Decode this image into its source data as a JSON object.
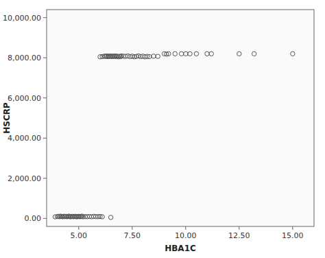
{
  "chart_data": {
    "type": "scatter",
    "xlabel": "HBA1C",
    "ylabel": "HSCRP",
    "color": "#555555",
    "marker": "circle",
    "x": [
      3.9,
      4.0,
      4.05,
      4.1,
      4.15,
      4.2,
      4.25,
      4.3,
      4.35,
      4.4,
      4.45,
      4.5,
      4.55,
      4.6,
      4.65,
      4.7,
      4.75,
      4.8,
      4.85,
      4.9,
      4.95,
      5.0,
      5.05,
      5.1,
      5.15,
      5.2,
      5.3,
      5.4,
      5.5,
      5.6,
      5.7,
      5.8,
      5.9,
      6.0,
      6.1,
      6.5,
      6.0,
      6.1,
      6.2,
      6.25,
      6.3,
      6.35,
      6.4,
      6.45,
      6.5,
      6.55,
      6.6,
      6.65,
      6.7,
      6.75,
      6.8,
      6.85,
      6.9,
      6.95,
      7.0,
      7.1,
      7.2,
      7.3,
      7.4,
      7.5,
      7.6,
      7.7,
      7.8,
      7.9,
      8.0,
      8.1,
      8.2,
      8.3,
      8.5,
      8.7,
      9.0,
      9.1,
      9.2,
      9.5,
      9.8,
      10.0,
      10.2,
      10.5,
      11.0,
      11.2,
      12.5,
      13.2,
      15.0
    ],
    "values": [
      80,
      90,
      100,
      85,
      110,
      95,
      80,
      105,
      90,
      100,
      85,
      95,
      110,
      80,
      90,
      100,
      85,
      95,
      100,
      80,
      90,
      100,
      85,
      95,
      110,
      80,
      90,
      85,
      95,
      80,
      100,
      90,
      85,
      95,
      80,
      50,
      8050,
      8060,
      8080,
      8070,
      8090,
      8060,
      8080,
      8070,
      8090,
      8060,
      8080,
      8070,
      8090,
      8060,
      8080,
      8050,
      8070,
      8060,
      8090,
      8080,
      8070,
      8090,
      8060,
      8080,
      8050,
      8070,
      8090,
      8060,
      8080,
      8050,
      8070,
      8060,
      8080,
      8070,
      8200,
      8180,
      8200,
      8200,
      8200,
      8200,
      8200,
      8200,
      8200,
      8200,
      8200,
      8200,
      8200
    ],
    "xlim": [
      3.5,
      16.0
    ],
    "ylim": [
      -400,
      10400
    ],
    "xticks": [
      {
        "value": 5.0,
        "label": "5.00"
      },
      {
        "value": 7.5,
        "label": "7.50"
      },
      {
        "value": 10.0,
        "label": "10.00"
      },
      {
        "value": 12.5,
        "label": "12.50"
      },
      {
        "value": 15.0,
        "label": "15.00"
      }
    ],
    "yticks": [
      {
        "value": 0,
        "label": "0.00"
      },
      {
        "value": 2000,
        "label": "2,000.00"
      },
      {
        "value": 4000,
        "label": "4,000.00"
      },
      {
        "value": 6000,
        "label": "6,000.00"
      },
      {
        "value": 8000,
        "label": "8,000.00"
      },
      {
        "value": 10000,
        "label": "10,000.00"
      }
    ]
  }
}
